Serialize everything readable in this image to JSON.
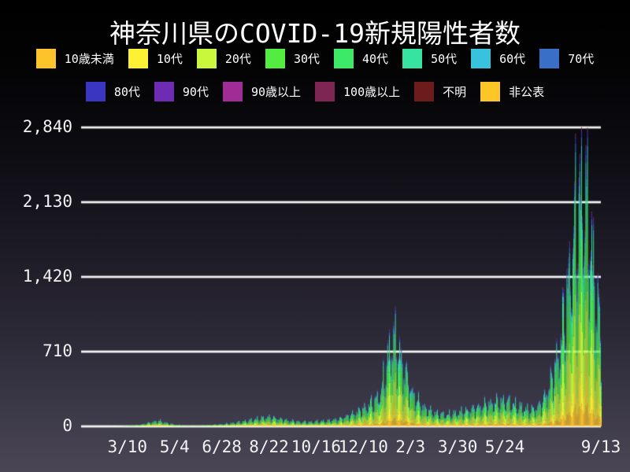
{
  "title": "神奈川県のCOVID-19新規陽性者数",
  "chart_data": {
    "type": "bar",
    "stacked": true,
    "title": "神奈川県のCOVID-19新規陽性者数",
    "ylim": [
      0,
      2840
    ],
    "y_ticks": [
      0,
      710,
      1420,
      2130,
      2840
    ],
    "y_tick_labels": [
      "0",
      "710",
      "1,420",
      "2,130",
      "2,840"
    ],
    "x_ticks": [
      {
        "label": "3/10",
        "day": 54
      },
      {
        "label": "5/4",
        "day": 109
      },
      {
        "label": "6/28",
        "day": 164
      },
      {
        "label": "8/22",
        "day": 219
      },
      {
        "label": "10/16",
        "day": 274
      },
      {
        "label": "12/10",
        "day": 329
      },
      {
        "label": "2/3",
        "day": 384
      },
      {
        "label": "3/30",
        "day": 439
      },
      {
        "label": "5/24",
        "day": 494
      },
      {
        "label": "9/13",
        "day": 606
      }
    ],
    "x_range_days": 606,
    "grid_color": "#ffffff",
    "series": [
      {
        "name": "10歳未満",
        "color": "#fdc32b",
        "share": 0.075
      },
      {
        "name": "10代",
        "color": "#fdf133",
        "share": 0.105
      },
      {
        "name": "20代",
        "color": "#c9f73b",
        "share": 0.27
      },
      {
        "name": "30代",
        "color": "#55ec41",
        "share": 0.175
      },
      {
        "name": "40代",
        "color": "#3dea68",
        "share": 0.15
      },
      {
        "name": "50代",
        "color": "#36e3a1",
        "share": 0.115
      },
      {
        "name": "60代",
        "color": "#38c3dc",
        "share": 0.047
      },
      {
        "name": "70代",
        "color": "#3a6fc8",
        "share": 0.028
      },
      {
        "name": "80代",
        "color": "#3a36c2",
        "share": 0.018
      },
      {
        "name": "90代",
        "color": "#6e2bb4",
        "share": 0.008
      },
      {
        "name": "90歳以上",
        "color": "#a02c96",
        "share": 0.003
      },
      {
        "name": "100歳以上",
        "color": "#7d2553",
        "share": 0.0005
      },
      {
        "name": "不明",
        "color": "#6d1c1c",
        "share": 0.004
      },
      {
        "name": "非公表",
        "color": "#fcc629",
        "share": 0.001
      }
    ],
    "envelope_days": [
      0,
      30,
      44,
      54,
      68,
      82,
      90,
      100,
      109,
      120,
      134,
      148,
      164,
      178,
      192,
      206,
      219,
      226,
      240,
      254,
      268,
      274,
      288,
      302,
      316,
      329,
      343,
      350,
      357,
      362,
      366,
      371,
      378,
      384,
      392,
      399,
      413,
      427,
      439,
      453,
      467,
      481,
      494,
      501,
      508,
      515,
      522,
      529,
      536,
      543,
      550,
      557,
      564,
      571,
      578,
      583,
      586,
      589,
      592,
      596,
      599,
      603,
      606
    ],
    "envelope_totals": [
      0,
      1,
      2,
      6,
      14,
      38,
      52,
      30,
      16,
      8,
      6,
      12,
      20,
      32,
      50,
      70,
      85,
      75,
      55,
      42,
      40,
      45,
      52,
      70,
      110,
      160,
      240,
      330,
      600,
      780,
      760,
      640,
      480,
      330,
      230,
      170,
      120,
      105,
      125,
      150,
      185,
      215,
      235,
      210,
      185,
      165,
      150,
      160,
      205,
      310,
      470,
      700,
      1050,
      1500,
      1950,
      2160,
      2100,
      1980,
      1800,
      1500,
      1250,
      1000,
      820
    ],
    "weekly_pattern": [
      1.18,
      1.28,
      1.32,
      0.98,
      0.62,
      0.82,
      1.05
    ]
  }
}
